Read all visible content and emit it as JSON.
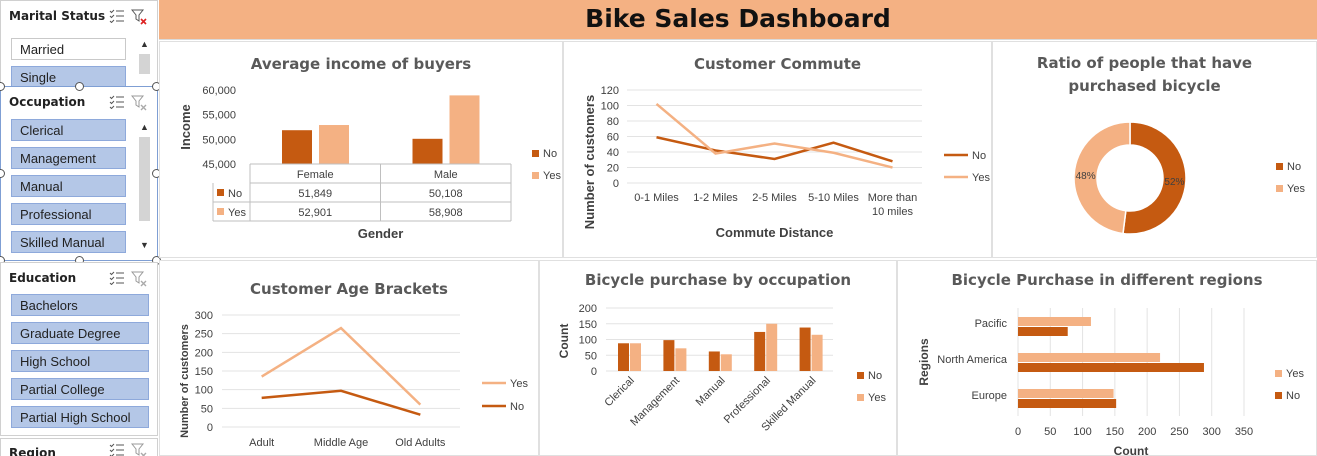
{
  "header": {
    "title": "Bike Sales Dashboard"
  },
  "colors": {
    "no": "#c55a11",
    "yes": "#f4b183",
    "header": "#f4b183",
    "slicer_selected": "#b4c7e7"
  },
  "slicers": {
    "marital_status": {
      "title": "Marital Status",
      "items": [
        {
          "label": "Married",
          "selected": false
        },
        {
          "label": "Single",
          "selected": true
        }
      ]
    },
    "occupation": {
      "title": "Occupation",
      "items": [
        {
          "label": "Clerical",
          "selected": true
        },
        {
          "label": "Management",
          "selected": true
        },
        {
          "label": "Manual",
          "selected": true
        },
        {
          "label": "Professional",
          "selected": true
        },
        {
          "label": "Skilled Manual",
          "selected": true
        }
      ]
    },
    "education": {
      "title": "Education",
      "items": [
        {
          "label": "Bachelors",
          "selected": true
        },
        {
          "label": "Graduate Degree",
          "selected": true
        },
        {
          "label": "High School",
          "selected": true
        },
        {
          "label": "Partial College",
          "selected": true
        },
        {
          "label": "Partial High School",
          "selected": true
        }
      ]
    },
    "region": {
      "title": "Region"
    }
  },
  "chart_data": [
    {
      "id": "income",
      "type": "bar",
      "title": "Average income of  buyers",
      "xlabel": "Gender",
      "ylabel": "Income",
      "categories": [
        "Female",
        "Male"
      ],
      "series": [
        {
          "name": "No",
          "values": [
            51849,
            50108
          ],
          "labels": [
            "51,849",
            "50,108"
          ]
        },
        {
          "name": "Yes",
          "values": [
            52901,
            58908
          ],
          "labels": [
            "52,901",
            "58,908"
          ]
        }
      ],
      "ylim": [
        45000,
        60000
      ],
      "yticks": [
        "45,000",
        "50,000",
        "55,000",
        "60,000"
      ],
      "data_table": true,
      "legend": "right"
    },
    {
      "id": "commute",
      "type": "line",
      "title": "Customer Commute",
      "xlabel": "Commute Distance",
      "ylabel": "Number of customers",
      "categories": [
        "0-1 Miles",
        "1-2 Miles",
        "2-5 Miles",
        "5-10 Miles",
        "More than 10 miles"
      ],
      "series": [
        {
          "name": "No",
          "values": [
            59,
            42,
            31,
            52,
            28
          ]
        },
        {
          "name": "Yes",
          "values": [
            102,
            38,
            51,
            39,
            20
          ]
        }
      ],
      "ylim": [
        0,
        120
      ],
      "yticks": [
        "0",
        "20",
        "40",
        "60",
        "80",
        "100",
        "120"
      ],
      "legend": "right"
    },
    {
      "id": "ratio",
      "type": "pie",
      "title": "Ratio of people that have purchased  bicycle",
      "series": [
        {
          "name": "No",
          "value": 52,
          "label": "52%"
        },
        {
          "name": "Yes",
          "value": 48,
          "label": "48%"
        }
      ],
      "legend": "right"
    },
    {
      "id": "age",
      "type": "line",
      "title": "Customer Age Brackets",
      "ylabel": "Number of customers",
      "categories": [
        "Adult",
        "Middle Age",
        "Old Adults"
      ],
      "series": [
        {
          "name": "Yes",
          "values": [
            135,
            265,
            60
          ]
        },
        {
          "name": "No",
          "values": [
            78,
            97,
            33
          ]
        }
      ],
      "ylim": [
        0,
        300
      ],
      "yticks": [
        "0",
        "50",
        "100",
        "150",
        "200",
        "250",
        "300"
      ],
      "legend": "right"
    },
    {
      "id": "occupation",
      "type": "bar",
      "title": "Bicycle purchase by occupation",
      "ylabel": "Count",
      "categories": [
        "Clerical",
        "Management",
        "Manual",
        "Professional",
        "Skilled Manual"
      ],
      "series": [
        {
          "name": "No",
          "values": [
            88,
            98,
            62,
            124,
            138
          ]
        },
        {
          "name": "Yes",
          "values": [
            88,
            72,
            53,
            150,
            115
          ]
        }
      ],
      "ylim": [
        0,
        200
      ],
      "yticks": [
        "0",
        "50",
        "100",
        "150",
        "200"
      ],
      "legend": "right"
    },
    {
      "id": "regions",
      "type": "bar",
      "orientation": "horizontal",
      "title": "Bicycle Purchase in different regions",
      "xlabel": "Count",
      "ylabel": "Regions",
      "categories": [
        "Pacific",
        "North America",
        "Europe"
      ],
      "series": [
        {
          "name": "Yes",
          "values": [
            113,
            220,
            148
          ]
        },
        {
          "name": "No",
          "values": [
            77,
            288,
            152
          ]
        }
      ],
      "xlim": [
        0,
        350
      ],
      "xticks": [
        "0",
        "50",
        "100",
        "150",
        "200",
        "250",
        "300",
        "350"
      ],
      "legend": "right"
    }
  ]
}
